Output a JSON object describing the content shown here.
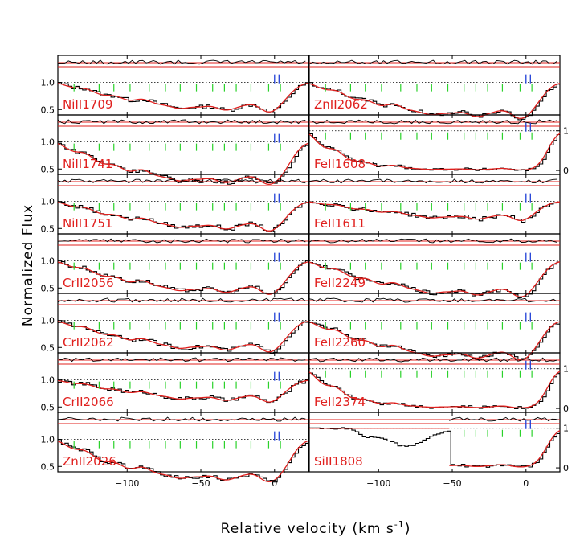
{
  "chart_data": {
    "type": "line",
    "xlabel": "Relative velocity (km s",
    "xlabel_sup": "-1",
    "xlabel_end": ")",
    "ylabel": "Normalized Flux",
    "xlim": [
      -147,
      23
    ],
    "x_ticks": [
      -100,
      -50,
      0
    ],
    "x_tick_labels": [
      "−100",
      "−50",
      "0"
    ],
    "colors": {
      "data": "#000000",
      "model": "#e0201e",
      "components": "#2bd12b",
      "markers": "#1f3fd6",
      "continuum": "#000000"
    },
    "component_velocities": [
      -136,
      -119,
      -109,
      -98,
      -85,
      -74,
      -64,
      -53,
      -42,
      -34,
      -26,
      -16,
      -4,
      4
    ],
    "marker_velocities": [
      0,
      3
    ],
    "panels": [
      {
        "column": "left",
        "row": 0,
        "label": "NiII1709",
        "ylim": [
          0.4,
          1.5
        ],
        "yticks": [
          0.5,
          1.0
        ],
        "right_yticks": [],
        "depth": 0.18
      },
      {
        "column": "left",
        "row": 1,
        "label": "NiII1741",
        "ylim": [
          0.4,
          1.5
        ],
        "yticks": [
          0.5,
          1.0
        ],
        "right_yticks": [],
        "depth": 0.35
      },
      {
        "column": "left",
        "row": 2,
        "label": "NiII1751",
        "ylim": [
          0.4,
          1.5
        ],
        "yticks": [
          0.5,
          1.0
        ],
        "right_yticks": [],
        "depth": 0.18
      },
      {
        "column": "left",
        "row": 3,
        "label": "CrII2056",
        "ylim": [
          0.4,
          1.5
        ],
        "yticks": [
          0.5,
          1.0
        ],
        "right_yticks": [],
        "depth": 0.22
      },
      {
        "column": "left",
        "row": 4,
        "label": "CrII2062",
        "ylim": [
          0.4,
          1.5
        ],
        "yticks": [
          0.5,
          1.0
        ],
        "right_yticks": [],
        "depth": 0.2
      },
      {
        "column": "left",
        "row": 5,
        "label": "CrII2066",
        "ylim": [
          0.4,
          1.5
        ],
        "yticks": [
          0.5,
          1.0
        ],
        "right_yticks": [],
        "depth": 0.12
      },
      {
        "column": "left",
        "row": 6,
        "label": "ZnII2026",
        "ylim": [
          0.4,
          1.5
        ],
        "yticks": [
          0.5,
          1.0
        ],
        "right_yticks": [],
        "depth": 0.35
      },
      {
        "column": "right",
        "row": 0,
        "label": "ZnII2062",
        "ylim": [
          0.4,
          1.5
        ],
        "yticks": [],
        "right_yticks": [],
        "depth": 0.25
      },
      {
        "column": "right",
        "row": 1,
        "label": "FeII1608",
        "ylim": [
          -0.1,
          1.4
        ],
        "yticks": [],
        "right_yticks": [
          0,
          1
        ],
        "depth": 1.0
      },
      {
        "column": "right",
        "row": 2,
        "label": "FeII1611",
        "ylim": [
          0.4,
          1.5
        ],
        "yticks": [],
        "right_yticks": [],
        "depth": 0.1
      },
      {
        "column": "right",
        "row": 3,
        "label": "FeII2249",
        "ylim": [
          0.4,
          1.5
        ],
        "yticks": [],
        "right_yticks": [],
        "depth": 0.25
      },
      {
        "column": "right",
        "row": 4,
        "label": "FeII2260",
        "ylim": [
          0.4,
          1.5
        ],
        "yticks": [],
        "right_yticks": [],
        "depth": 0.3
      },
      {
        "column": "right",
        "row": 5,
        "label": "FeII2374",
        "ylim": [
          -0.1,
          1.4
        ],
        "yticks": [],
        "right_yticks": [
          0,
          1
        ],
        "depth": 0.95
      },
      {
        "column": "right",
        "row": 6,
        "label": "SiII1808",
        "ylim": [
          -0.1,
          1.4
        ],
        "yticks": [],
        "right_yticks": [
          0,
          1
        ],
        "depth": 0.85
      }
    ]
  }
}
